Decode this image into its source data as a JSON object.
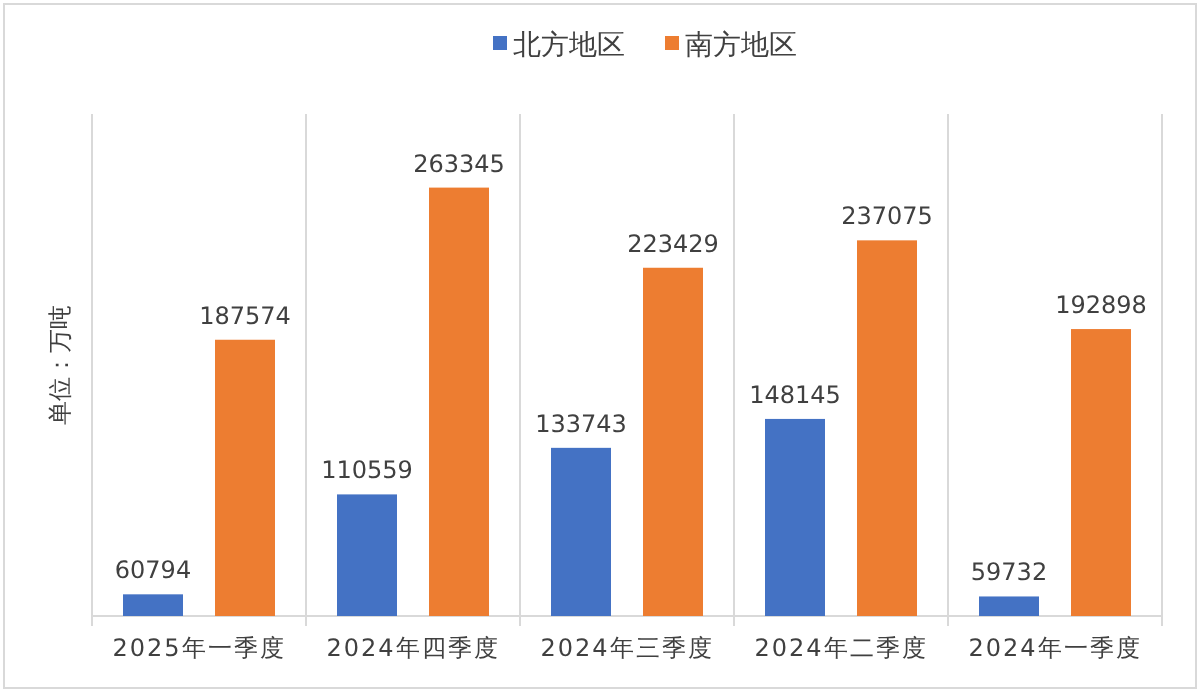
{
  "chart_data": {
    "type": "bar",
    "ylabel": "单位：万吨",
    "categories": [
      "2025年一季度",
      "2024年四季度",
      "2024年三季度",
      "2024年二季度",
      "2024年一季度"
    ],
    "series": [
      {
        "name": "北方地区",
        "color": "#4472c4",
        "values": [
          60794,
          110559,
          133743,
          148145,
          59732
        ]
      },
      {
        "name": "南方地区",
        "color": "#ed7d31",
        "values": [
          187574,
          263345,
          223429,
          237075,
          192898
        ]
      }
    ],
    "ylim": [
      50000,
      300000
    ],
    "data_labels": true,
    "legend": "top"
  }
}
